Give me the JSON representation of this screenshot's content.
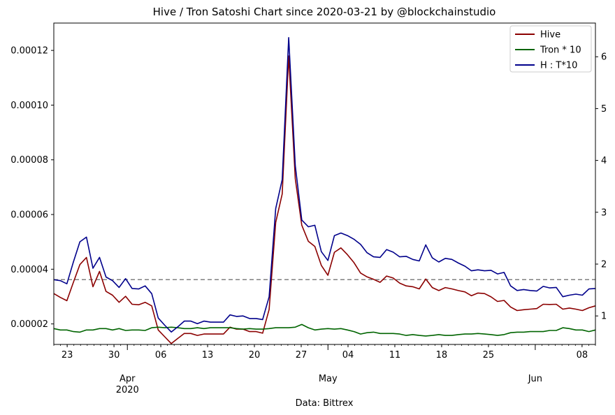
{
  "chart_data": {
    "type": "line",
    "title": "Hive / Tron Satoshi Chart since 2020-03-21 by @blockchainstudio",
    "xlabel": "Data: Bittrex",
    "ylabel_left": "",
    "ylabel_right": "",
    "ylim_left": [
      1.25e-05,
      0.00013
    ],
    "ylim_right": [
      0.45,
      6.65
    ],
    "x_range_days": [
      0,
      81
    ],
    "x_ticks": [
      {
        "day": 2,
        "label": "23"
      },
      {
        "day": 9,
        "label": "30"
      },
      {
        "day": 11,
        "label": "Apr",
        "label2": "2020",
        "major": true
      },
      {
        "day": 16,
        "label": "06"
      },
      {
        "day": 23,
        "label": "13"
      },
      {
        "day": 30,
        "label": "20"
      },
      {
        "day": 37,
        "label": "27"
      },
      {
        "day": 41,
        "label": "May",
        "major": true
      },
      {
        "day": 44,
        "label": "04"
      },
      {
        "day": 51,
        "label": "11"
      },
      {
        "day": 58,
        "label": "18"
      },
      {
        "day": 65,
        "label": "25"
      },
      {
        "day": 72,
        "label": "Jun",
        "major": true
      },
      {
        "day": 79,
        "label": "08"
      }
    ],
    "y_ticks_left": [
      "0.00002",
      "0.00004",
      "0.00006",
      "0.00008",
      "0.00010",
      "0.00012"
    ],
    "y_ticks_left_values": [
      2e-05,
      4e-05,
      6e-05,
      8e-05,
      0.0001,
      0.00012
    ],
    "y_ticks_right": [
      "1",
      "2",
      "3",
      "4",
      "5",
      "6"
    ],
    "y_ticks_right_values": [
      1,
      2,
      3,
      4,
      5,
      6
    ],
    "reference_line_right": 1.7,
    "grid": false,
    "legend_position": "top-right",
    "series": [
      {
        "name": "Hive",
        "axis": "left",
        "color": "#8b0000",
        "values": [
          3.11e-05,
          2.97e-05,
          2.85e-05,
          3.52e-05,
          4.17e-05,
          4.43e-05,
          3.36e-05,
          3.92e-05,
          3.19e-05,
          3.05e-05,
          2.79e-05,
          3.01e-05,
          2.72e-05,
          2.7e-05,
          2.79e-05,
          2.66e-05,
          1.78e-05,
          1.53e-05,
          1.28e-05,
          1.47e-05,
          1.65e-05,
          1.65e-05,
          1.58e-05,
          1.63e-05,
          1.63e-05,
          1.63e-05,
          1.63e-05,
          1.88e-05,
          1.81e-05,
          1.81e-05,
          1.72e-05,
          1.72e-05,
          1.66e-05,
          2.53e-05,
          5.71e-05,
          6.75e-05,
          0.000118,
          7.31e-05,
          5.61e-05,
          5.02e-05,
          4.83e-05,
          4.14e-05,
          3.78e-05,
          4.62e-05,
          4.78e-05,
          4.53e-05,
          4.24e-05,
          3.86e-05,
          3.72e-05,
          3.63e-05,
          3.52e-05,
          3.75e-05,
          3.68e-05,
          3.49e-05,
          3.39e-05,
          3.36e-05,
          3.28e-05,
          3.64e-05,
          3.33e-05,
          3.22e-05,
          3.33e-05,
          3.28e-05,
          3.22e-05,
          3.17e-05,
          3.03e-05,
          3.13e-05,
          3.11e-05,
          2.99e-05,
          2.82e-05,
          2.86e-05,
          2.62e-05,
          2.49e-05,
          2.52e-05,
          2.54e-05,
          2.56e-05,
          2.72e-05,
          2.71e-05,
          2.72e-05,
          2.54e-05,
          2.58e-05,
          2.54e-05,
          2.49e-05,
          2.59e-05,
          2.66e-05
        ]
      },
      {
        "name": "Tron * 10",
        "axis": "left",
        "color": "#006400",
        "values": [
          1.83e-05,
          1.78e-05,
          1.78e-05,
          1.72e-05,
          1.7e-05,
          1.78e-05,
          1.78e-05,
          1.83e-05,
          1.83e-05,
          1.78e-05,
          1.83e-05,
          1.76e-05,
          1.78e-05,
          1.78e-05,
          1.76e-05,
          1.86e-05,
          1.88e-05,
          1.86e-05,
          1.88e-05,
          1.86e-05,
          1.83e-05,
          1.83e-05,
          1.86e-05,
          1.83e-05,
          1.86e-05,
          1.86e-05,
          1.86e-05,
          1.86e-05,
          1.83e-05,
          1.81e-05,
          1.83e-05,
          1.81e-05,
          1.81e-05,
          1.83e-05,
          1.86e-05,
          1.86e-05,
          1.86e-05,
          1.88e-05,
          1.98e-05,
          1.86e-05,
          1.78e-05,
          1.81e-05,
          1.83e-05,
          1.81e-05,
          1.83e-05,
          1.78e-05,
          1.72e-05,
          1.63e-05,
          1.68e-05,
          1.7e-05,
          1.65e-05,
          1.65e-05,
          1.65e-05,
          1.63e-05,
          1.58e-05,
          1.61e-05,
          1.58e-05,
          1.56e-05,
          1.58e-05,
          1.61e-05,
          1.58e-05,
          1.58e-05,
          1.61e-05,
          1.63e-05,
          1.63e-05,
          1.65e-05,
          1.63e-05,
          1.61e-05,
          1.58e-05,
          1.61e-05,
          1.68e-05,
          1.7e-05,
          1.7e-05,
          1.72e-05,
          1.72e-05,
          1.72e-05,
          1.76e-05,
          1.76e-05,
          1.86e-05,
          1.83e-05,
          1.78e-05,
          1.78e-05,
          1.72e-05,
          1.78e-05
        ]
      },
      {
        "name": "H : T*10",
        "axis": "right",
        "color": "#00008b",
        "values": [
          1.7,
          1.68,
          1.62,
          2.04,
          2.43,
          2.52,
          1.92,
          2.13,
          1.75,
          1.68,
          1.55,
          1.72,
          1.53,
          1.52,
          1.58,
          1.43,
          0.96,
          0.82,
          0.69,
          0.79,
          0.9,
          0.9,
          0.85,
          0.9,
          0.88,
          0.88,
          0.88,
          1.02,
          0.99,
          1.0,
          0.95,
          0.95,
          0.93,
          1.37,
          3.07,
          3.63,
          6.37,
          3.9,
          2.85,
          2.72,
          2.75,
          2.24,
          2.07,
          2.55,
          2.6,
          2.55,
          2.48,
          2.38,
          2.22,
          2.14,
          2.13,
          2.28,
          2.23,
          2.14,
          2.15,
          2.09,
          2.06,
          2.37,
          2.12,
          2.04,
          2.11,
          2.09,
          2.02,
          1.96,
          1.87,
          1.89,
          1.87,
          1.88,
          1.81,
          1.84,
          1.58,
          1.49,
          1.51,
          1.49,
          1.48,
          1.57,
          1.54,
          1.55,
          1.37,
          1.4,
          1.42,
          1.4,
          1.52,
          1.53
        ]
      }
    ]
  }
}
